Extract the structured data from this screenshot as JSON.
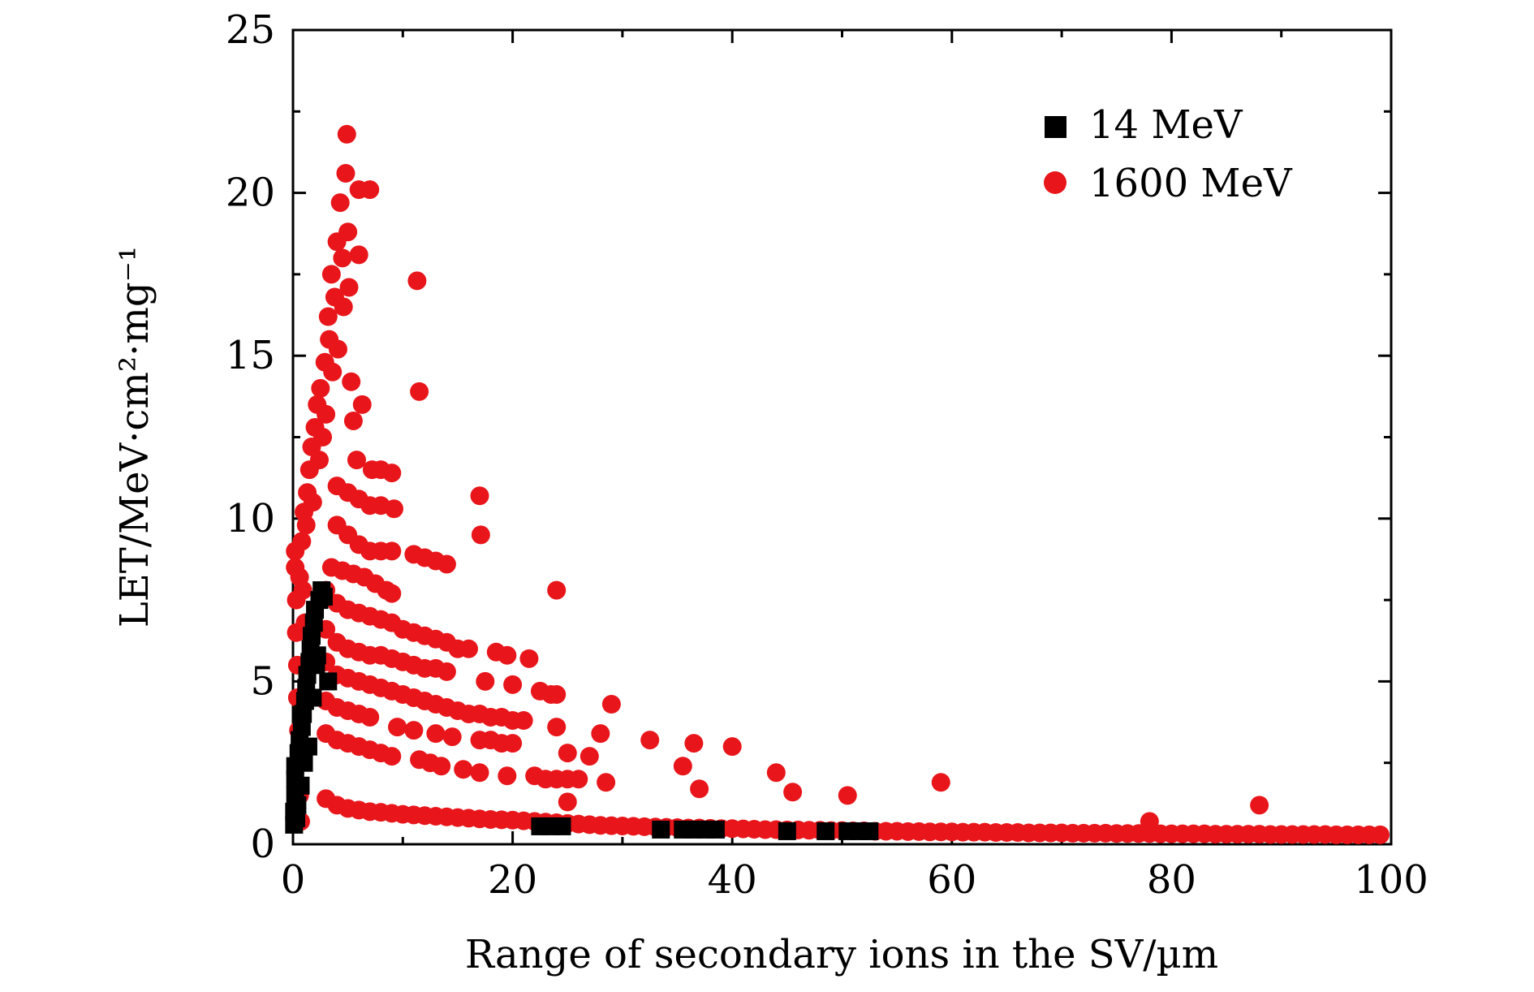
{
  "chart_data": {
    "type": "scatter",
    "title": "",
    "xlabel": "Range of secondary ions in the SV/µm",
    "ylabel": "LET/MeV·cm²·mg⁻¹",
    "xlim": [
      0,
      100
    ],
    "ylim": [
      0,
      25
    ],
    "x_ticks": [
      0,
      20,
      40,
      60,
      80,
      100
    ],
    "y_ticks": [
      0,
      5,
      10,
      15,
      20,
      25
    ],
    "x_tick_labels": [
      "0",
      "20",
      "40",
      "60",
      "80",
      "100"
    ],
    "y_tick_labels": [
      "0",
      "5",
      "10",
      "15",
      "20",
      "25"
    ],
    "grid": false,
    "legend_position": "top-right",
    "series": [
      {
        "name": "14 MeV",
        "marker": "square",
        "color": "#000000",
        "points": [
          [
            0.1,
            0.6
          ],
          [
            0.1,
            1.0
          ],
          [
            0.2,
            1.5
          ],
          [
            0.2,
            2.0
          ],
          [
            0.2,
            2.4
          ],
          [
            0.3,
            0.8
          ],
          [
            0.4,
            1.2
          ],
          [
            0.5,
            2.8
          ],
          [
            0.6,
            3.2
          ],
          [
            0.7,
            1.8
          ],
          [
            0.8,
            3.6
          ],
          [
            0.9,
            4.0
          ],
          [
            1.0,
            2.5
          ],
          [
            1.1,
            4.4
          ],
          [
            1.2,
            4.8
          ],
          [
            1.3,
            5.2
          ],
          [
            1.4,
            3.0
          ],
          [
            1.5,
            5.6
          ],
          [
            1.6,
            6.0
          ],
          [
            1.7,
            6.4
          ],
          [
            1.8,
            4.5
          ],
          [
            1.9,
            6.8
          ],
          [
            2.0,
            7.2
          ],
          [
            2.1,
            5.5
          ],
          [
            2.2,
            5.8
          ],
          [
            2.4,
            7.5
          ],
          [
            2.6,
            7.8
          ],
          [
            2.8,
            7.6
          ],
          [
            3.2,
            5.0
          ],
          [
            22.5,
            0.55
          ],
          [
            23.5,
            0.55
          ],
          [
            24.5,
            0.55
          ],
          [
            33.5,
            0.45
          ],
          [
            35.5,
            0.45
          ],
          [
            36.5,
            0.45
          ],
          [
            37.5,
            0.45
          ],
          [
            38.5,
            0.45
          ],
          [
            45.0,
            0.4
          ],
          [
            48.5,
            0.4
          ],
          [
            50.5,
            0.4
          ],
          [
            51.5,
            0.4
          ],
          [
            52.5,
            0.4
          ]
        ]
      },
      {
        "name": "1600 MeV",
        "marker": "circle",
        "color": "#e8161b",
        "points": [
          [
            0.2,
            8.5
          ],
          [
            0.2,
            9.0
          ],
          [
            0.3,
            7.5
          ],
          [
            0.3,
            6.5
          ],
          [
            0.4,
            5.5
          ],
          [
            0.4,
            4.5
          ],
          [
            0.5,
            3.5
          ],
          [
            0.5,
            2.5
          ],
          [
            0.6,
            1.5
          ],
          [
            0.7,
            0.7
          ],
          [
            0.6,
            8.2
          ],
          [
            0.8,
            9.3
          ],
          [
            0.9,
            7.8
          ],
          [
            1.0,
            10.2
          ],
          [
            1.1,
            6.8
          ],
          [
            1.2,
            9.8
          ],
          [
            1.3,
            10.8
          ],
          [
            1.5,
            11.5
          ],
          [
            1.7,
            12.2
          ],
          [
            1.8,
            10.5
          ],
          [
            2.0,
            12.8
          ],
          [
            2.2,
            13.5
          ],
          [
            2.4,
            11.8
          ],
          [
            2.5,
            14.0
          ],
          [
            2.7,
            12.5
          ],
          [
            2.9,
            14.8
          ],
          [
            3.0,
            13.2
          ],
          [
            3.2,
            16.2
          ],
          [
            3.3,
            15.5
          ],
          [
            3.5,
            17.5
          ],
          [
            3.6,
            14.5
          ],
          [
            3.8,
            16.8
          ],
          [
            4.0,
            18.5
          ],
          [
            4.1,
            15.2
          ],
          [
            4.3,
            19.7
          ],
          [
            4.5,
            18.0
          ],
          [
            4.6,
            16.5
          ],
          [
            4.8,
            20.6
          ],
          [
            4.9,
            21.8
          ],
          [
            5.0,
            18.8
          ],
          [
            5.1,
            17.1
          ],
          [
            5.3,
            14.2
          ],
          [
            5.5,
            13.0
          ],
          [
            5.8,
            11.8
          ],
          [
            6.0,
            20.1
          ],
          [
            6.0,
            18.1
          ],
          [
            6.3,
            13.5
          ],
          [
            7.0,
            20.1
          ],
          [
            7.2,
            11.5
          ],
          [
            8.0,
            11.5
          ],
          [
            9.0,
            11.4
          ],
          [
            9.2,
            10.3
          ],
          [
            11.3,
            17.3
          ],
          [
            11.5,
            13.9
          ],
          [
            17.0,
            10.7
          ],
          [
            17.1,
            9.5
          ],
          [
            24.0,
            7.8
          ],
          [
            4.0,
            11.0
          ],
          [
            5.0,
            10.8
          ],
          [
            6.0,
            10.6
          ],
          [
            7.0,
            10.4
          ],
          [
            8.0,
            10.4
          ],
          [
            4.0,
            9.8
          ],
          [
            5.0,
            9.5
          ],
          [
            6.0,
            9.2
          ],
          [
            7.0,
            9.0
          ],
          [
            8.0,
            9.0
          ],
          [
            9.0,
            9.0
          ],
          [
            11.0,
            8.9
          ],
          [
            12.0,
            8.8
          ],
          [
            13.0,
            8.7
          ],
          [
            14.0,
            8.6
          ],
          [
            3.5,
            8.5
          ],
          [
            4.5,
            8.4
          ],
          [
            5.5,
            8.3
          ],
          [
            6.5,
            8.2
          ],
          [
            7.5,
            8.0
          ],
          [
            8.5,
            7.8
          ],
          [
            9.0,
            7.7
          ],
          [
            3.0,
            7.8
          ],
          [
            4.0,
            7.4
          ],
          [
            5.0,
            7.2
          ],
          [
            6.0,
            7.1
          ],
          [
            7.0,
            7.0
          ],
          [
            8.0,
            6.9
          ],
          [
            9.0,
            6.8
          ],
          [
            10.0,
            6.6
          ],
          [
            11.0,
            6.5
          ],
          [
            12.0,
            6.4
          ],
          [
            13.0,
            6.3
          ],
          [
            14.0,
            6.2
          ],
          [
            15.0,
            6.0
          ],
          [
            16.0,
            6.0
          ],
          [
            18.5,
            5.9
          ],
          [
            19.5,
            5.8
          ],
          [
            21.5,
            5.7
          ],
          [
            3.0,
            6.6
          ],
          [
            4.0,
            6.2
          ],
          [
            5.0,
            6.0
          ],
          [
            6.0,
            5.9
          ],
          [
            7.0,
            5.8
          ],
          [
            8.0,
            5.8
          ],
          [
            9.0,
            5.7
          ],
          [
            10.0,
            5.6
          ],
          [
            11.0,
            5.5
          ],
          [
            12.0,
            5.4
          ],
          [
            13.0,
            5.4
          ],
          [
            14.0,
            5.3
          ],
          [
            17.5,
            5.0
          ],
          [
            20.0,
            4.9
          ],
          [
            22.5,
            4.7
          ],
          [
            23.5,
            4.6
          ],
          [
            24.0,
            4.6
          ],
          [
            3.0,
            5.6
          ],
          [
            4.0,
            5.2
          ],
          [
            5.0,
            5.1
          ],
          [
            6.0,
            5.0
          ],
          [
            7.0,
            4.9
          ],
          [
            8.0,
            4.8
          ],
          [
            9.0,
            4.7
          ],
          [
            10.0,
            4.6
          ],
          [
            11.0,
            4.5
          ],
          [
            12.0,
            4.4
          ],
          [
            13.0,
            4.3
          ],
          [
            14.0,
            4.2
          ],
          [
            15.0,
            4.1
          ],
          [
            16.0,
            4.0
          ],
          [
            17.0,
            4.0
          ],
          [
            18.0,
            3.9
          ],
          [
            19.0,
            3.9
          ],
          [
            20.0,
            3.8
          ],
          [
            21.0,
            3.8
          ],
          [
            29.0,
            4.3
          ],
          [
            3.0,
            4.4
          ],
          [
            4.0,
            4.2
          ],
          [
            5.0,
            4.1
          ],
          [
            6.0,
            4.0
          ],
          [
            7.0,
            3.9
          ],
          [
            9.5,
            3.6
          ],
          [
            11.0,
            3.5
          ],
          [
            13.0,
            3.4
          ],
          [
            14.5,
            3.3
          ],
          [
            17.0,
            3.2
          ],
          [
            18.0,
            3.2
          ],
          [
            19.0,
            3.1
          ],
          [
            20.0,
            3.1
          ],
          [
            24.0,
            3.6
          ],
          [
            28.0,
            3.4
          ],
          [
            32.5,
            3.2
          ],
          [
            36.5,
            3.1
          ],
          [
            40.0,
            3.0
          ],
          [
            35.5,
            2.4
          ],
          [
            25.0,
            2.8
          ],
          [
            27.0,
            2.7
          ],
          [
            3.0,
            3.4
          ],
          [
            4.0,
            3.2
          ],
          [
            5.0,
            3.1
          ],
          [
            6.0,
            3.0
          ],
          [
            7.0,
            2.9
          ],
          [
            8.0,
            2.8
          ],
          [
            9.0,
            2.7
          ],
          [
            11.5,
            2.6
          ],
          [
            12.5,
            2.5
          ],
          [
            13.5,
            2.4
          ],
          [
            15.5,
            2.3
          ],
          [
            17.0,
            2.2
          ],
          [
            19.5,
            2.1
          ],
          [
            22.0,
            2.1
          ],
          [
            23.0,
            2.0
          ],
          [
            24.0,
            2.0
          ],
          [
            25.0,
            2.0
          ],
          [
            26.0,
            2.0
          ],
          [
            28.5,
            1.9
          ],
          [
            37.0,
            1.7
          ],
          [
            44.0,
            2.2
          ],
          [
            45.5,
            1.6
          ],
          [
            50.5,
            1.5
          ],
          [
            59.0,
            1.9
          ],
          [
            25.0,
            1.3
          ],
          [
            78.0,
            0.7
          ],
          [
            88.0,
            1.2
          ],
          [
            3.0,
            1.4
          ],
          [
            4.0,
            1.2
          ],
          [
            5.0,
            1.1
          ],
          [
            6.0,
            1.05
          ],
          [
            7.0,
            1.0
          ],
          [
            8.0,
            0.98
          ],
          [
            9.0,
            0.95
          ],
          [
            10.0,
            0.92
          ],
          [
            11.0,
            0.9
          ],
          [
            12.0,
            0.88
          ],
          [
            13.0,
            0.86
          ],
          [
            14.0,
            0.84
          ],
          [
            15.0,
            0.82
          ],
          [
            16.0,
            0.8
          ],
          [
            17.0,
            0.78
          ],
          [
            18.0,
            0.76
          ],
          [
            19.0,
            0.75
          ],
          [
            20.0,
            0.74
          ],
          [
            21.0,
            0.72
          ],
          [
            22.0,
            0.7
          ],
          [
            23.0,
            0.68
          ],
          [
            24.0,
            0.66
          ],
          [
            25.0,
            0.64
          ],
          [
            26.0,
            0.62
          ],
          [
            27.0,
            0.6
          ],
          [
            28.0,
            0.58
          ],
          [
            29.0,
            0.57
          ],
          [
            30.0,
            0.56
          ],
          [
            31.0,
            0.55
          ],
          [
            32.0,
            0.54
          ],
          [
            33.0,
            0.53
          ],
          [
            34.0,
            0.52
          ],
          [
            35.0,
            0.51
          ],
          [
            36.0,
            0.5
          ],
          [
            37.0,
            0.5
          ],
          [
            38.0,
            0.49
          ],
          [
            39.0,
            0.48
          ],
          [
            40.0,
            0.48
          ],
          [
            41.0,
            0.47
          ],
          [
            42.0,
            0.46
          ],
          [
            43.0,
            0.45
          ],
          [
            44.0,
            0.45
          ],
          [
            45.0,
            0.44
          ],
          [
            46.0,
            0.44
          ],
          [
            47.0,
            0.43
          ],
          [
            48.0,
            0.43
          ],
          [
            49.0,
            0.42
          ],
          [
            50.0,
            0.42
          ],
          [
            51.0,
            0.41
          ],
          [
            52.0,
            0.41
          ],
          [
            53.0,
            0.4
          ],
          [
            54.0,
            0.4
          ],
          [
            55.0,
            0.4
          ],
          [
            56.0,
            0.39
          ],
          [
            57.0,
            0.39
          ],
          [
            58.0,
            0.38
          ],
          [
            59.0,
            0.38
          ],
          [
            60.0,
            0.38
          ],
          [
            61.0,
            0.37
          ],
          [
            62.0,
            0.37
          ],
          [
            63.0,
            0.37
          ],
          [
            64.0,
            0.36
          ],
          [
            65.0,
            0.36
          ],
          [
            66.0,
            0.36
          ],
          [
            67.0,
            0.35
          ],
          [
            68.0,
            0.35
          ],
          [
            69.0,
            0.35
          ],
          [
            70.0,
            0.35
          ],
          [
            71.0,
            0.34
          ],
          [
            72.0,
            0.34
          ],
          [
            73.0,
            0.34
          ],
          [
            74.0,
            0.34
          ],
          [
            75.0,
            0.33
          ],
          [
            76.0,
            0.33
          ],
          [
            77.0,
            0.33
          ],
          [
            78.0,
            0.33
          ],
          [
            79.0,
            0.32
          ],
          [
            80.0,
            0.32
          ],
          [
            81.0,
            0.32
          ],
          [
            82.0,
            0.32
          ],
          [
            83.0,
            0.32
          ],
          [
            84.0,
            0.31
          ],
          [
            85.0,
            0.31
          ],
          [
            86.0,
            0.31
          ],
          [
            87.0,
            0.31
          ],
          [
            88.0,
            0.31
          ],
          [
            89.0,
            0.3
          ],
          [
            90.0,
            0.3
          ],
          [
            91.0,
            0.3
          ],
          [
            92.0,
            0.3
          ],
          [
            93.0,
            0.3
          ],
          [
            94.0,
            0.3
          ],
          [
            95.0,
            0.29
          ],
          [
            96.0,
            0.29
          ],
          [
            97.0,
            0.29
          ],
          [
            98.0,
            0.29
          ],
          [
            99.0,
            0.29
          ]
        ]
      }
    ]
  }
}
